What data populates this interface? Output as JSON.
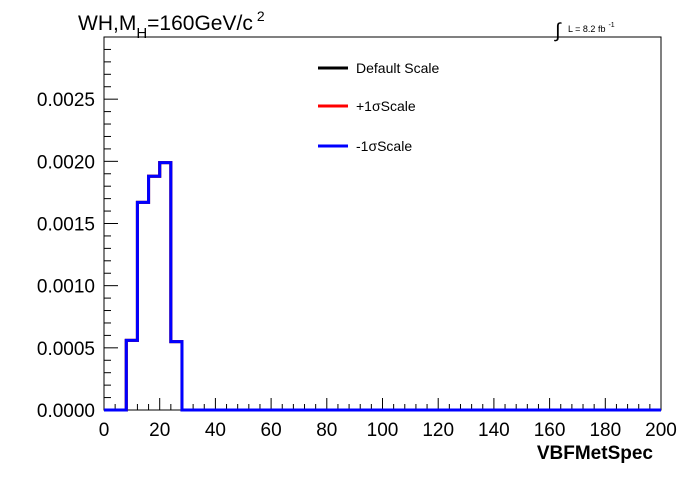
{
  "header": {
    "title_main": "WH,M",
    "title_sub": "H",
    "title_tail": "=160GeV/c",
    "title_sup": "2",
    "lumi_integral": "∫",
    "lumi_text": "L = 8.2 fb",
    "lumi_sup": "-1"
  },
  "chart_data": {
    "type": "line",
    "xlabel": "VBFMetSpec",
    "ylabel": "",
    "xlim": [
      0,
      200
    ],
    "ylim": [
      0,
      0.003
    ],
    "x_ticks": [
      "0",
      "20",
      "40",
      "60",
      "80",
      "100",
      "120",
      "140",
      "160",
      "180",
      "200"
    ],
    "x_tick_values": [
      0,
      20,
      40,
      60,
      80,
      100,
      120,
      140,
      160,
      180,
      200
    ],
    "y_ticks": [
      "0.0000",
      "0.0005",
      "0.0010",
      "0.0015",
      "0.0020",
      "0.0025"
    ],
    "y_tick_values": [
      0,
      0.0005,
      0.001,
      0.0015,
      0.002,
      0.0025
    ],
    "bin_width": 4,
    "grid": false,
    "legend_position": "top-center",
    "series": [
      {
        "name": "Default Scale",
        "color": "#000000",
        "bin_lows": [
          0,
          4,
          8,
          12,
          16,
          20,
          24,
          28,
          32,
          36,
          40,
          44,
          48,
          52,
          56,
          60,
          64,
          68,
          72,
          76,
          80,
          84,
          88,
          92,
          96,
          100,
          104,
          108,
          112,
          116,
          120,
          124,
          128,
          132,
          136,
          140,
          144,
          148,
          152,
          156,
          160,
          164,
          168,
          172,
          176,
          180,
          184,
          188,
          192,
          196
        ],
        "values": [
          0,
          0,
          0.00056,
          0.00167,
          0.00188,
          0.00199,
          0.00055,
          0,
          0,
          0,
          0,
          0,
          0,
          0,
          0,
          0,
          0,
          0,
          0,
          0,
          0,
          0,
          0,
          0,
          0,
          0,
          0,
          0,
          0,
          0,
          0,
          0,
          0,
          0,
          0,
          0,
          0,
          0,
          0,
          0,
          0,
          0,
          0,
          0,
          0,
          0,
          0,
          0,
          0,
          0
        ]
      },
      {
        "name": "+1σScale",
        "color": "#ff0000",
        "bin_lows": [
          0,
          4,
          8,
          12,
          16,
          20,
          24,
          28,
          32,
          36,
          40,
          44,
          48,
          52,
          56,
          60,
          64,
          68,
          72,
          76,
          80,
          84,
          88,
          92,
          96,
          100,
          104,
          108,
          112,
          116,
          120,
          124,
          128,
          132,
          136,
          140,
          144,
          148,
          152,
          156,
          160,
          164,
          168,
          172,
          176,
          180,
          184,
          188,
          192,
          196
        ],
        "values": [
          0,
          0,
          0.00056,
          0.00167,
          0.00188,
          0.00199,
          0.00055,
          0,
          0,
          0,
          0,
          0,
          0,
          0,
          0,
          0,
          0,
          0,
          0,
          0,
          0,
          0,
          0,
          0,
          0,
          0,
          0,
          0,
          0,
          0,
          0,
          0,
          0,
          0,
          0,
          0,
          0,
          0,
          0,
          0,
          0,
          0,
          0,
          0,
          0,
          0,
          0,
          0,
          0,
          0
        ]
      },
      {
        "name": "-1σScale",
        "color": "#0000ff",
        "bin_lows": [
          0,
          4,
          8,
          12,
          16,
          20,
          24,
          28,
          32,
          36,
          40,
          44,
          48,
          52,
          56,
          60,
          64,
          68,
          72,
          76,
          80,
          84,
          88,
          92,
          96,
          100,
          104,
          108,
          112,
          116,
          120,
          124,
          128,
          132,
          136,
          140,
          144,
          148,
          152,
          156,
          160,
          164,
          168,
          172,
          176,
          180,
          184,
          188,
          192,
          196
        ],
        "values": [
          0,
          0,
          0.00056,
          0.00167,
          0.00188,
          0.00199,
          0.00055,
          0,
          0,
          0,
          0,
          0,
          0,
          0,
          0,
          0,
          0,
          0,
          0,
          0,
          0,
          0,
          0,
          0,
          0,
          0,
          0,
          0,
          0,
          0,
          0,
          0,
          0,
          0,
          0,
          0,
          0,
          0,
          0,
          0,
          0,
          0,
          0,
          0,
          0,
          0,
          0,
          0,
          0,
          0
        ]
      }
    ]
  }
}
